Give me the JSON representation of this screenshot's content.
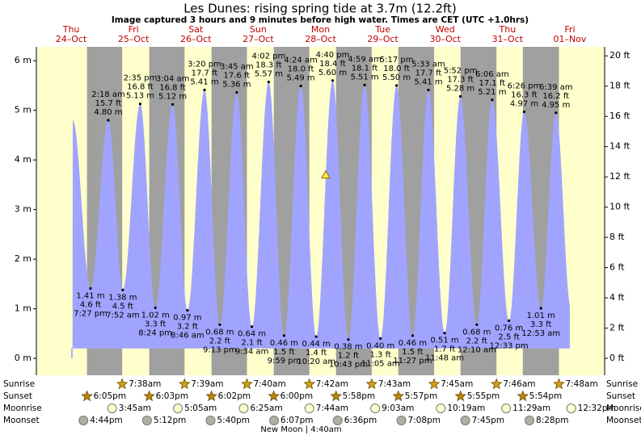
{
  "title": "Les Dunes: rising  spring tide at 3.7m (12.2ft)",
  "subtitle": "Image captured 3 hours and 9 minutes before high water. Times are CET (UTC +1.0hrs)",
  "rows": {
    "sunrise": "Sunrise",
    "sunset": "Sunset",
    "moonrise": "Moonrise",
    "moonset": "Moonset"
  },
  "chart_data": {
    "type": "tide",
    "fill_color": "#a0a4ff",
    "day_color": "#ffffcc",
    "night_color": "#a0a0a0",
    "current_level_m": 3.7,
    "ylim": [
      -0.34,
      6.28
    ],
    "yticks": [
      {
        "value": 0,
        "label": "0 m"
      },
      {
        "value": 1,
        "label": "1 m"
      },
      {
        "value": 2,
        "label": "2 m"
      },
      {
        "value": 3,
        "label": "3 m"
      },
      {
        "value": 4,
        "label": "4 m"
      },
      {
        "value": 5,
        "label": "5 m"
      },
      {
        "value": 6,
        "label": "6 m"
      }
    ],
    "y2lim": [
      -1.12,
      20.6
    ],
    "y2ticks": [
      {
        "value": 0,
        "label": "0 ft"
      },
      {
        "value": 2,
        "label": "2 ft"
      },
      {
        "value": 4,
        "label": "4 ft"
      },
      {
        "value": 6,
        "label": "6 ft"
      },
      {
        "value": 8,
        "label": "8 ft"
      },
      {
        "value": 10,
        "label": "10 ft"
      },
      {
        "value": 12,
        "label": "12 ft"
      },
      {
        "value": 14,
        "label": "14 ft"
      },
      {
        "value": 16,
        "label": "16 ft"
      },
      {
        "value": 18,
        "label": "18 ft"
      },
      {
        "value": 20,
        "label": "20 ft"
      }
    ],
    "days": [
      {
        "weekday": "Thu",
        "date": "24–Oct",
        "sunset": "6:05pm",
        "moonset": "4:44pm",
        "tides": [
          {
            "type": "low",
            "time": "7:27 pm",
            "m": 1.41,
            "m_label": "1.41 m",
            "ft": 4.6,
            "ft_label": "4.6 ft"
          }
        ]
      },
      {
        "weekday": "Fri",
        "date": "25–Oct",
        "sunrise": "7:38am",
        "sunset": "6:03pm",
        "moonrise": "3:45am",
        "moonset": "5:12pm",
        "tides": [
          {
            "type": "high",
            "time": "2:18 am",
            "m": 4.8,
            "m_label": "4.80 m",
            "ft": 15.7,
            "ft_label": "15.7 ft"
          },
          {
            "type": "low",
            "time": "7:52 am",
            "m": 1.38,
            "m_label": "1.38 m",
            "ft": 4.5,
            "ft_label": "4.5 ft"
          },
          {
            "type": "high",
            "time": "2:35 pm",
            "m": 5.13,
            "m_label": "5.13 m",
            "ft": 16.8,
            "ft_label": "16.8 ft"
          },
          {
            "type": "low",
            "time": "8:24 pm",
            "m": 1.02,
            "m_label": "1.02 m",
            "ft": 3.3,
            "ft_label": "3.3 ft"
          }
        ]
      },
      {
        "weekday": "Sat",
        "date": "26–Oct",
        "sunrise": "7:39am",
        "sunset": "6:02pm",
        "moonrise": "5:05am",
        "moonset": "5:40pm",
        "tides": [
          {
            "type": "high",
            "time": "3:04 am",
            "m": 5.12,
            "m_label": "5.12 m",
            "ft": 16.8,
            "ft_label": "16.8 ft"
          },
          {
            "type": "low",
            "time": "8:46 am",
            "m": 0.97,
            "m_label": "0.97 m",
            "ft": 3.2,
            "ft_label": "3.2 ft"
          },
          {
            "type": "high",
            "time": "3:20 pm",
            "m": 5.41,
            "m_label": "5.41 m",
            "ft": 17.7,
            "ft_label": "17.7 ft"
          },
          {
            "type": "low",
            "time": "9:13 pm",
            "m": 0.68,
            "m_label": "0.68 m",
            "ft": 2.2,
            "ft_label": "2.2 ft"
          }
        ]
      },
      {
        "weekday": "Sun",
        "date": "27–Oct",
        "sunrise": "7:40am",
        "sunset": "6:00pm",
        "moonrise": "6:25am",
        "moonset": "6:07pm",
        "tides": [
          {
            "type": "high",
            "time": "3:45 am",
            "m": 5.36,
            "m_label": "5.36 m",
            "ft": 17.6,
            "ft_label": "17.6 ft"
          },
          {
            "type": "low",
            "time": "9:34 am",
            "m": 0.64,
            "m_label": "0.64 m",
            "ft": 2.1,
            "ft_label": "2.1 ft"
          },
          {
            "type": "high",
            "time": "4:02 pm",
            "m": 5.57,
            "m_label": "5.57 m",
            "ft": 18.3,
            "ft_label": "18.3 ft"
          },
          {
            "type": "low",
            "time": "9:59 pm",
            "m": 0.46,
            "m_label": "0.46 m",
            "ft": 1.5,
            "ft_label": "1.5 ft"
          }
        ]
      },
      {
        "weekday": "Mon",
        "date": "28–Oct",
        "sunrise": "7:42am",
        "sunset": "5:58pm",
        "moonrise": "7:44am",
        "moonset": "6:36pm",
        "moon_phase": "New Moon | 4:40am",
        "tides": [
          {
            "type": "high",
            "time": "4:24 am",
            "m": 5.49,
            "m_label": "5.49 m",
            "ft": 18.0,
            "ft_label": "18.0 ft"
          },
          {
            "type": "low",
            "time": "10:20 am",
            "m": 0.44,
            "m_label": "0.44 m",
            "ft": 1.4,
            "ft_label": "1.4 ft"
          },
          {
            "type": "high",
            "time": "4:40 pm",
            "m": 5.6,
            "m_label": "5.60 m",
            "ft": 18.4,
            "ft_label": "18.4 ft"
          },
          {
            "type": "low",
            "time": "10:43 pm",
            "m": 0.38,
            "m_label": "0.38 m",
            "ft": 1.2,
            "ft_label": "1.2 ft"
          }
        ]
      },
      {
        "weekday": "Tue",
        "date": "29–Oct",
        "sunrise": "7:43am",
        "sunset": "5:57pm",
        "moonrise": "9:03am",
        "moonset": "7:08pm",
        "tides": [
          {
            "type": "high",
            "time": "4:59 am",
            "m": 5.51,
            "m_label": "5.51 m",
            "ft": 18.1,
            "ft_label": "18.1 ft"
          },
          {
            "type": "low",
            "time": "11:05 am",
            "m": 0.4,
            "m_label": "0.40 m",
            "ft": 1.3,
            "ft_label": "1.3 ft"
          },
          {
            "type": "high",
            "time": "5:17 pm",
            "m": 5.5,
            "m_label": "5.50 m",
            "ft": 18.0,
            "ft_label": "18.0 ft"
          },
          {
            "type": "low",
            "time": "11:27 pm",
            "m": 0.46,
            "m_label": "0.46 m",
            "ft": 1.5,
            "ft_label": "1.5 ft"
          }
        ]
      },
      {
        "weekday": "Wed",
        "date": "30–Oct",
        "sunrise": "7:45am",
        "sunset": "5:55pm",
        "moonrise": "10:19am",
        "moonset": "7:45pm",
        "tides": [
          {
            "type": "high",
            "time": "5:33 am",
            "m": 5.41,
            "m_label": "5.41 m",
            "ft": 17.7,
            "ft_label": "17.7 ft"
          },
          {
            "type": "low",
            "time": "11:48 am",
            "m": 0.51,
            "m_label": "0.51 m",
            "ft": 1.7,
            "ft_label": "1.7 ft"
          },
          {
            "type": "high",
            "time": "5:52 pm",
            "m": 5.28,
            "m_label": "5.28 m",
            "ft": 17.3,
            "ft_label": "17.3 ft"
          }
        ]
      },
      {
        "weekday": "Thu",
        "date": "31–Oct",
        "sunrise": "7:46am",
        "sunset": "5:54pm",
        "moonrise": "11:29am",
        "moonset": "8:28pm",
        "tides": [
          {
            "type": "low",
            "time": "12:10 am",
            "m": 0.68,
            "m_label": "0.68 m",
            "ft": 2.2,
            "ft_label": "2.2 ft"
          },
          {
            "type": "high",
            "time": "6:06 am",
            "m": 5.21,
            "m_label": "5.21 m",
            "ft": 17.1,
            "ft_label": "17.1 ft"
          },
          {
            "type": "low",
            "time": "12:33 pm",
            "m": 0.76,
            "m_label": "0.76 m",
            "ft": 2.5,
            "ft_label": "2.5 ft"
          },
          {
            "type": "high",
            "time": "6:26 pm",
            "m": 4.97,
            "m_label": "4.97 m",
            "ft": 16.3,
            "ft_label": "16.3 ft"
          }
        ]
      },
      {
        "weekday": "Fri",
        "date": "01–Nov",
        "sunrise": "7:48am",
        "moonrise": "12:32pm",
        "tides": [
          {
            "type": "low",
            "time": "12:53 am",
            "m": 1.01,
            "m_label": "1.01 m",
            "ft": 3.3,
            "ft_label": "3.3 ft"
          },
          {
            "type": "high",
            "time": "6:39 am",
            "m": 4.95,
            "m_label": "4.95 m",
            "ft": 16.2,
            "ft_label": "16.2 ft"
          }
        ]
      }
    ]
  }
}
